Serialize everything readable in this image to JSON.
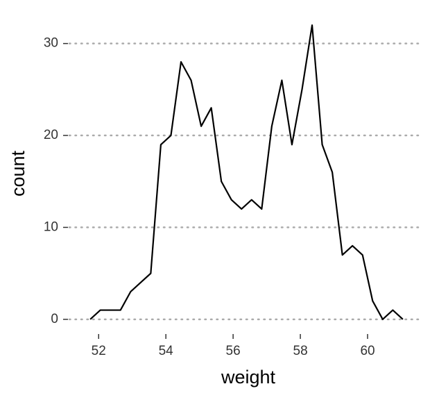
{
  "chart_data": {
    "type": "line",
    "x_label": "weight",
    "y_label": "count",
    "x": [
      51.75,
      52.05,
      52.35,
      52.65,
      52.95,
      53.25,
      53.55,
      53.85,
      54.15,
      54.45,
      54.75,
      55.05,
      55.35,
      55.65,
      55.95,
      56.25,
      56.55,
      56.85,
      57.15,
      57.45,
      57.75,
      58.05,
      58.35,
      58.65,
      58.95,
      59.25,
      59.55,
      59.85,
      60.15,
      60.45,
      60.75,
      61.05
    ],
    "values": [
      0,
      1,
      1,
      1,
      3,
      4,
      5,
      19,
      20,
      28,
      26,
      21,
      23,
      15,
      13,
      12,
      13,
      12,
      21,
      26,
      19,
      25,
      32,
      19,
      16,
      7,
      8,
      7,
      2,
      0,
      1,
      0
    ],
    "color": "#000000",
    "xlim": [
      51.5,
      61.65
    ],
    "xticks": [
      52,
      54,
      56,
      58,
      60
    ],
    "ylim": [
      -1.6,
      33.6
    ],
    "yticks": [
      0,
      10,
      20,
      30
    ],
    "grid": true
  }
}
